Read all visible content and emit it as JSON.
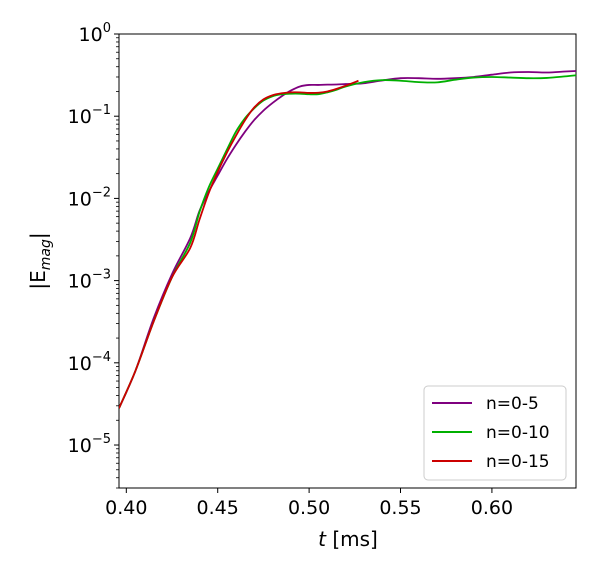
{
  "chart_data": {
    "type": "line",
    "title": "",
    "xlabel": {
      "var": "t",
      "unit": " [ms]"
    },
    "ylabel": {
      "base": "|E",
      "sub": "mag",
      "close": "|"
    },
    "xlim": [
      0.396,
      0.646
    ],
    "ylim": [
      3e-06,
      1.0
    ],
    "yscale": "log",
    "grid": false,
    "legend_position": "lower-right",
    "x_ticks": [
      "0.40",
      "0.45",
      "0.50",
      "0.55",
      "0.60"
    ],
    "x_tick_values": [
      0.4,
      0.45,
      0.5,
      0.55,
      0.6
    ],
    "y_ticks": [
      {
        "value": 1e-05,
        "base": "10",
        "exp": "−5"
      },
      {
        "value": 0.0001,
        "base": "10",
        "exp": "−4"
      },
      {
        "value": 0.001,
        "base": "10",
        "exp": "−3"
      },
      {
        "value": 0.01,
        "base": "10",
        "exp": "−2"
      },
      {
        "value": 0.1,
        "base": "10",
        "exp": "−1"
      },
      {
        "value": 1,
        "base": "10",
        "exp": "0"
      }
    ],
    "series": [
      {
        "name": "n=0-5",
        "color": "#7f007f",
        "x": [
          0.396,
          0.405,
          0.415,
          0.425,
          0.435,
          0.44,
          0.445,
          0.45,
          0.455,
          0.46,
          0.465,
          0.47,
          0.475,
          0.48,
          0.485,
          0.49,
          0.495,
          0.5,
          0.505,
          0.51,
          0.515,
          0.52,
          0.525,
          0.53,
          0.54,
          0.55,
          0.56,
          0.57,
          0.58,
          0.59,
          0.6,
          0.61,
          0.62,
          0.63,
          0.64,
          0.646
        ],
        "y": [
          2.8e-05,
          8e-05,
          0.00035,
          0.0012,
          0.0033,
          0.007,
          0.012,
          0.019,
          0.03,
          0.045,
          0.065,
          0.09,
          0.117,
          0.145,
          0.175,
          0.205,
          0.23,
          0.24,
          0.24,
          0.242,
          0.243,
          0.246,
          0.248,
          0.252,
          0.272,
          0.29,
          0.29,
          0.285,
          0.29,
          0.3,
          0.32,
          0.34,
          0.345,
          0.34,
          0.35,
          0.355
        ]
      },
      {
        "name": "n=0-10",
        "color": "#00b000",
        "x": [
          0.396,
          0.405,
          0.415,
          0.425,
          0.435,
          0.44,
          0.445,
          0.45,
          0.455,
          0.46,
          0.465,
          0.47,
          0.475,
          0.48,
          0.485,
          0.49,
          0.495,
          0.5,
          0.505,
          0.51,
          0.515,
          0.52,
          0.53,
          0.54,
          0.55,
          0.56,
          0.57,
          0.58,
          0.59,
          0.6,
          0.61,
          0.62,
          0.63,
          0.64,
          0.646
        ],
        "y": [
          2.8e-05,
          8e-05,
          0.00032,
          0.0011,
          0.0029,
          0.0068,
          0.0135,
          0.023,
          0.039,
          0.065,
          0.095,
          0.125,
          0.155,
          0.175,
          0.185,
          0.188,
          0.188,
          0.185,
          0.185,
          0.195,
          0.21,
          0.23,
          0.26,
          0.275,
          0.27,
          0.26,
          0.258,
          0.278,
          0.295,
          0.3,
          0.295,
          0.29,
          0.292,
          0.305,
          0.315
        ]
      },
      {
        "name": "n=0-15",
        "color": "#cc0000",
        "x": [
          0.396,
          0.405,
          0.415,
          0.425,
          0.435,
          0.44,
          0.445,
          0.45,
          0.455,
          0.46,
          0.465,
          0.47,
          0.475,
          0.48,
          0.485,
          0.49,
          0.495,
          0.5,
          0.505,
          0.51,
          0.515,
          0.52,
          0.527
        ],
        "y": [
          2.8e-05,
          8e-05,
          0.00032,
          0.0011,
          0.0025,
          0.0055,
          0.0115,
          0.021,
          0.036,
          0.058,
          0.09,
          0.128,
          0.16,
          0.18,
          0.19,
          0.195,
          0.195,
          0.192,
          0.193,
          0.2,
          0.215,
          0.235,
          0.27
        ]
      }
    ]
  }
}
